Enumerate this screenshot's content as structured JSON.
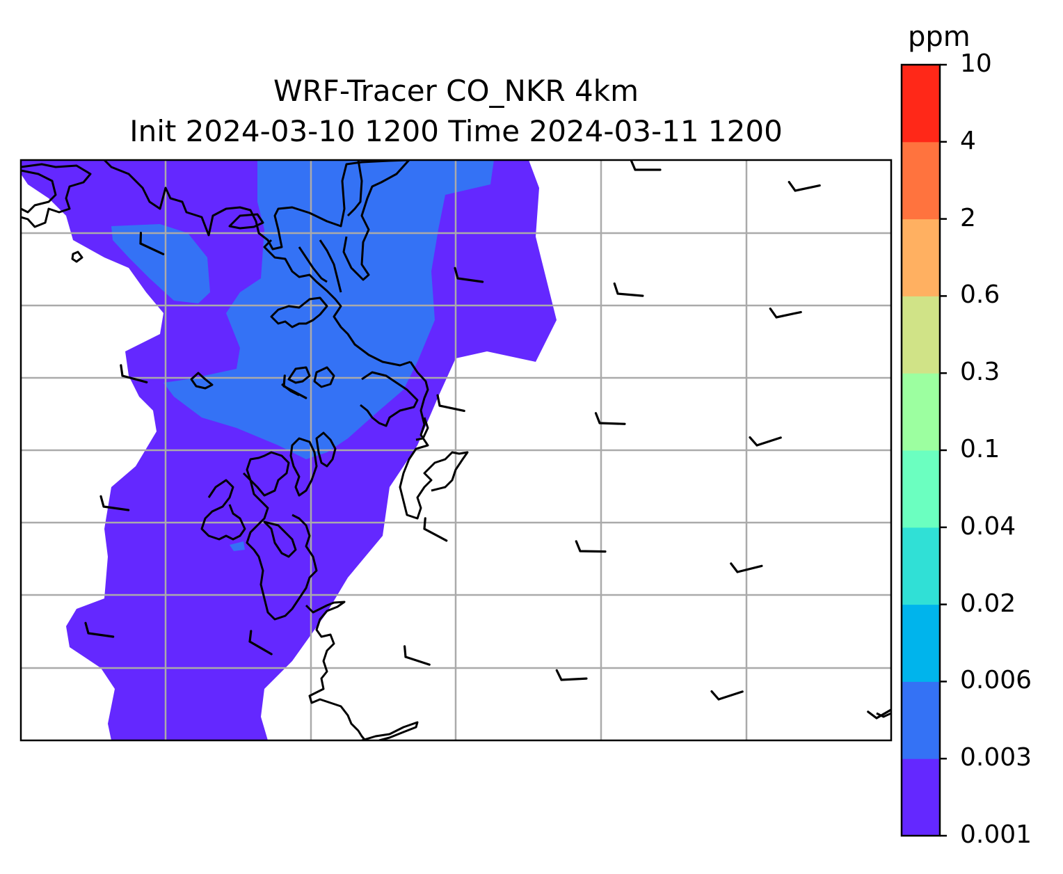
{
  "map": {
    "title_line1": "WRF-Tracer CO_NKR 4km",
    "title_line2": "Init 2024-03-10 1200 Time 2024-03-11 1200",
    "field_colors": {
      "0.001-0.003": "#6428ff",
      "0.003-0.006": "#3472f5"
    },
    "coastline_color": "#000000",
    "gridline_color": "#aaaaaa",
    "wind_barb_icon": "wind-barb-icon"
  },
  "colorbar": {
    "unit": "ppm",
    "levels": [
      "0.001",
      "0.003",
      "0.006",
      "0.02",
      "0.04",
      "0.1",
      "0.3",
      "0.6",
      "2",
      "4",
      "10"
    ],
    "colors": [
      "#6428ff",
      "#3472f5",
      "#00b4ec",
      "#30e0d6",
      "#6bffc0",
      "#9cffa0",
      "#d0e387",
      "#ffb061",
      "#ff733e",
      "#ff2818"
    ]
  }
}
